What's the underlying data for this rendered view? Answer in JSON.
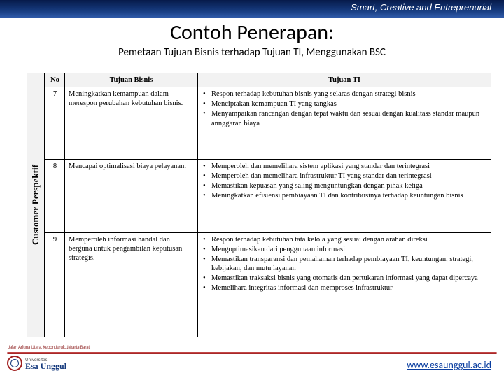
{
  "banner": {
    "tagline": "Smart, Creative and Entreprenurial"
  },
  "title": "Contoh Penerapan:",
  "subtitle": "Pemetaan Tujuan Bisnis terhadap Tujuan TI, Menggunakan BSC",
  "sideLabel": "Customer Perspektif",
  "headers": {
    "no": "No",
    "bisnis": "Tujuan Bisnis",
    "ti": "Tujuan TI"
  },
  "rows": [
    {
      "no": "7",
      "bisnis": "Meningkatkan kemampuan dalam merespon perubahan kebutuhan bisnis.",
      "ti": [
        "Respon terhadap kebutuhan bisnis yang selaras dengan strategi bisnis",
        "Menciptakan kemampuan TI yang tangkas",
        "Menyampaikan rancangan dengan tepat waktu dan sesuai dengan kualitass standar maupun annggaran biaya"
      ]
    },
    {
      "no": "8",
      "bisnis": "Mencapai optimalisasi biaya pelayanan.",
      "ti": [
        "Memperoleh dan memelihara sistem aplikasi yang standar dan terintegrasi",
        "Memperoleh dan memelihara infrastruktur TI yang standar dan terintegrasi",
        "Memastikan kepuasan yang saling menguntungkan dengan pihak ketiga",
        "Meningkatkan efisiensi pembiayaan TI dan kontribusinya terhadap keuntungan bisnis"
      ]
    },
    {
      "no": "9",
      "bisnis": "Memperoleh informasi handal dan berguna untuk pengambilan keputusan strategis.",
      "ti": [
        "Respon terhadap kebutuhan tata kelola yang sesuai dengan arahan direksi",
        "Mengoptimasikan dari penggunaan informasi",
        "Memastikan transparansi dan pemahaman terhadap pembiayaan TI, keuntungan, strategi, kebijakan, dan mutu layanan",
        "Memastikan traksaksi bisnis yang otomatis dan pertukaran informasi yang dapat dipercaya",
        "Memelihara integritas informasi dan memproses infrastruktur"
      ]
    }
  ],
  "footer": {
    "url": "www.esaunggul.ac.id",
    "small": "Jalan Arjuna Utara, Kebon Jeruk, Jakarta Barat",
    "logo_univ": "Universitas",
    "logo_name": "Esa Unggul"
  },
  "colors": {
    "banner_bg": "#163a7d",
    "accent_red": "#a02020",
    "link": "#0b3ea0",
    "header_bg": "#f2f2f2"
  }
}
